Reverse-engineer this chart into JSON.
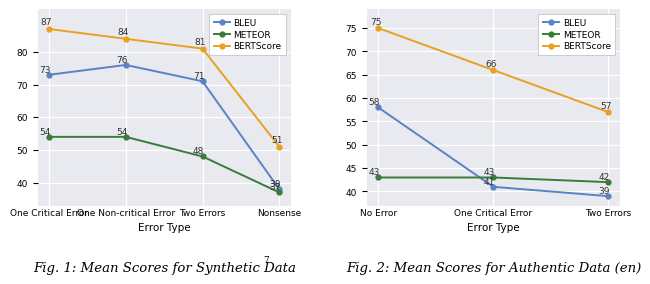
{
  "fig1": {
    "title": "Fig. 1: Mean Scores for Synthetic Data",
    "superscript": "7",
    "x_labels": [
      "One Critical Error",
      "One Non-critical Error",
      "Two Errors",
      "Nonsense"
    ],
    "xlabel": "Error Type",
    "bleu": [
      73,
      76,
      71,
      38
    ],
    "meteor": [
      54,
      54,
      48,
      37
    ],
    "bertscore": [
      87,
      84,
      81,
      51
    ],
    "ylim": [
      33,
      93
    ],
    "yticks": [
      40,
      50,
      60,
      70,
      80
    ]
  },
  "fig2": {
    "title": "Fig. 2: Mean Scores for Authentic Data (en)",
    "x_labels": [
      "No Error",
      "One Critical Error",
      "Two Errors"
    ],
    "xlabel": "Error Type",
    "bleu": [
      58,
      41,
      39
    ],
    "meteor": [
      43,
      43,
      42
    ],
    "bertscore": [
      75,
      66,
      57
    ],
    "ylim": [
      37,
      79
    ],
    "yticks": [
      40,
      45,
      50,
      55,
      60,
      65,
      70,
      75
    ]
  },
  "bleu_color": "#5b82c4",
  "meteor_color": "#3a7a3a",
  "bertscore_color": "#e8a020",
  "bg_color": "#e8eaf0",
  "annot_fs": 6.5,
  "label_fs": 7.5,
  "tick_fs": 6.5,
  "caption_fs": 9.5
}
